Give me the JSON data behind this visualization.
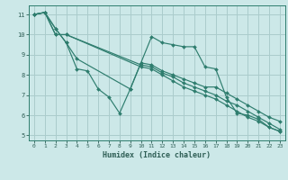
{
  "xlabel": "Humidex (Indice chaleur)",
  "background_color": "#cce8e8",
  "grid_color": "#aacccc",
  "line_color": "#2e7d6e",
  "xlim": [
    -0.5,
    23.5
  ],
  "ylim": [
    4.75,
    11.45
  ],
  "xticks": [
    0,
    1,
    2,
    3,
    4,
    5,
    6,
    7,
    8,
    9,
    10,
    11,
    12,
    13,
    14,
    15,
    16,
    17,
    18,
    19,
    20,
    21,
    22,
    23
  ],
  "yticks": [
    5,
    6,
    7,
    8,
    9,
    10,
    11
  ],
  "series": [
    {
      "x": [
        0,
        1,
        2,
        3,
        4,
        5,
        6,
        7,
        8,
        9,
        10,
        11,
        12,
        13,
        14,
        15,
        16,
        17,
        18,
        19,
        20,
        21,
        22,
        23
      ],
      "y": [
        11.0,
        11.1,
        10.3,
        9.6,
        8.3,
        8.2,
        7.3,
        6.9,
        6.1,
        7.3,
        8.6,
        9.9,
        9.6,
        9.5,
        9.4,
        9.4,
        8.4,
        8.3,
        6.9,
        6.1,
        6.0,
        5.8,
        5.4,
        5.2
      ]
    },
    {
      "x": [
        0,
        1,
        2,
        3,
        4,
        9,
        10,
        11,
        12,
        13,
        14,
        15,
        16,
        17,
        18,
        19,
        20,
        21,
        22,
        23
      ],
      "y": [
        11.0,
        11.1,
        10.3,
        9.6,
        8.8,
        7.3,
        8.6,
        8.5,
        8.2,
        8.0,
        7.8,
        7.6,
        7.4,
        7.4,
        7.1,
        6.8,
        6.5,
        6.2,
        5.9,
        5.7
      ]
    },
    {
      "x": [
        0,
        1,
        2,
        3,
        10,
        11,
        12,
        13,
        14,
        15,
        16,
        17,
        18,
        19,
        20,
        21,
        22,
        23
      ],
      "y": [
        11.0,
        11.1,
        10.0,
        10.0,
        8.5,
        8.4,
        8.1,
        7.9,
        7.6,
        7.4,
        7.2,
        7.0,
        6.7,
        6.5,
        6.2,
        5.9,
        5.6,
        5.3
      ]
    },
    {
      "x": [
        0,
        1,
        2,
        3,
        10,
        11,
        12,
        13,
        14,
        15,
        16,
        17,
        18,
        19,
        20,
        21,
        22,
        23
      ],
      "y": [
        11.0,
        11.1,
        10.0,
        10.0,
        8.4,
        8.3,
        8.0,
        7.7,
        7.4,
        7.2,
        7.0,
        6.8,
        6.5,
        6.2,
        5.9,
        5.7,
        5.4,
        5.2
      ]
    }
  ]
}
